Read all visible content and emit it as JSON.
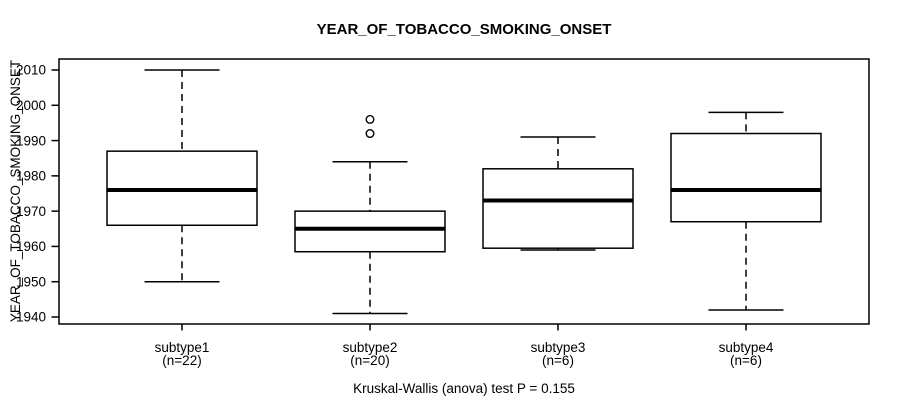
{
  "chart_data": {
    "type": "boxplot",
    "title": "YEAR_OF_TOBACCO_SMOKING_ONSET",
    "ylabel": "YEAR_OF_TOBACCO_SMOKING_ONSET",
    "xlabel": "",
    "annotation": "Kruskal-Wallis (anova) test P = 0.155",
    "yticks": [
      1940,
      1950,
      1960,
      1970,
      1980,
      1990,
      2000,
      2010
    ],
    "ylim": [
      1938,
      2013
    ],
    "grid": false,
    "colors": {
      "line": "#000000",
      "box_fill": "#ffffff",
      "background": "#ffffff"
    },
    "groups": [
      {
        "label": "subtype1",
        "sublabel": "(n=22)",
        "n": 22,
        "min": 1950,
        "q1": 1966,
        "median": 1976,
        "q3": 1987,
        "max": 2010,
        "outliers": []
      },
      {
        "label": "subtype2",
        "sublabel": "(n=20)",
        "n": 20,
        "min": 1941,
        "q1": 1958.5,
        "median": 1965,
        "q3": 1970,
        "max": 1984,
        "outliers": [
          1992,
          1996
        ]
      },
      {
        "label": "subtype3",
        "sublabel": "(n=6)",
        "n": 6,
        "min": 1959,
        "q1": 1959.5,
        "median": 1973,
        "q3": 1982,
        "max": 1991,
        "outliers": []
      },
      {
        "label": "subtype4",
        "sublabel": "(n=6)",
        "n": 6,
        "min": 1942,
        "q1": 1967,
        "median": 1976,
        "q3": 1992,
        "max": 1998,
        "outliers": []
      }
    ]
  }
}
